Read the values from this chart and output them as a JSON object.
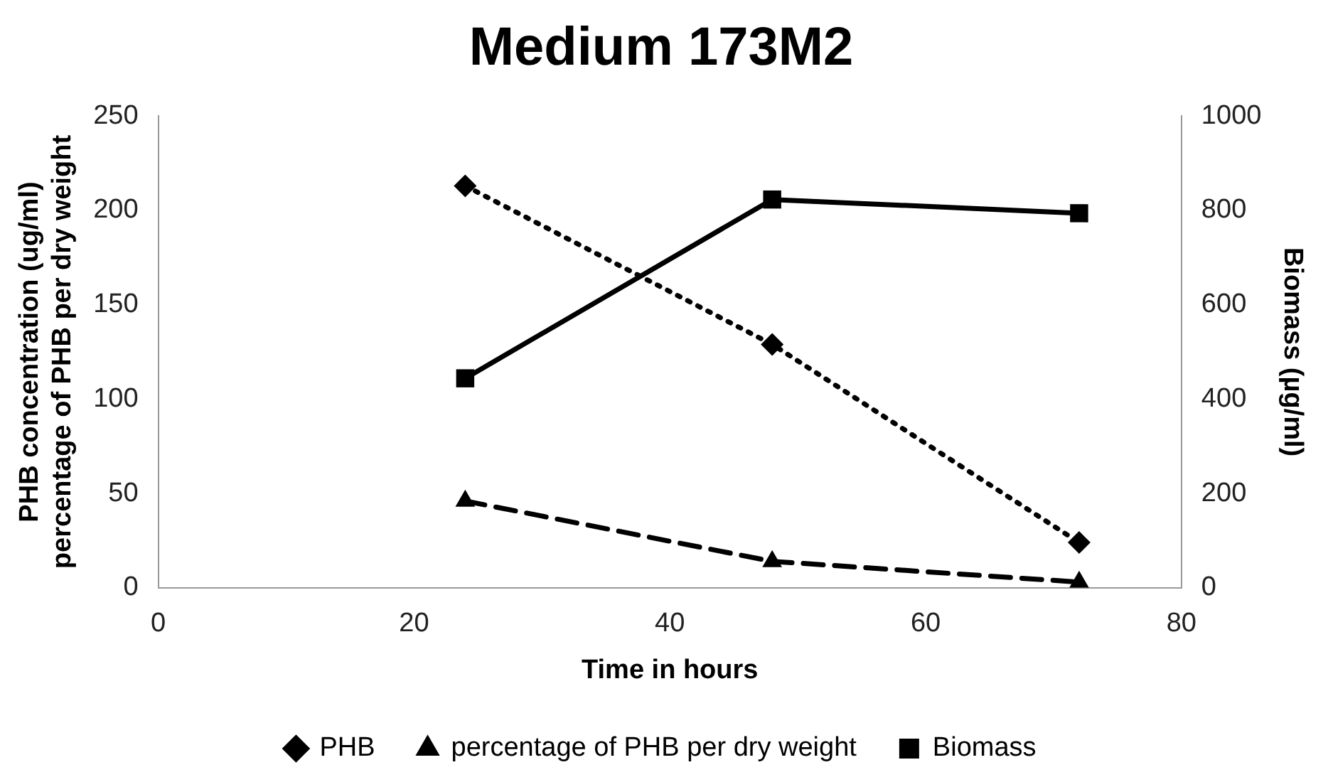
{
  "chart_data": {
    "type": "line",
    "title": "Medium 173M2",
    "xlabel": "Time in hours",
    "ylabel": "PHB concentration (ug/ml)\npercentage of PHB per dry weight",
    "y2label": "Biomass (µg/ml)",
    "x": [
      24,
      48,
      72
    ],
    "series": [
      {
        "name": "PHB",
        "color": "#000000",
        "values": [
          213,
          129,
          24
        ],
        "marker": "diamond",
        "line_style": "dotted"
      },
      {
        "name": "percentage of PHB per dry weight",
        "color": "#000000",
        "values": [
          46,
          14,
          3
        ],
        "marker": "triangle",
        "line_style": "dashed"
      },
      {
        "name": "Biomass",
        "color": "#000000",
        "values": [
          444,
          823,
          794
        ],
        "marker": "square",
        "line_style": "solid",
        "axis": "y2"
      }
    ],
    "xlim": [
      0,
      80
    ],
    "xticks": [
      0,
      20,
      40,
      60,
      80
    ],
    "ylim": [
      0,
      250
    ],
    "yticks": [
      0,
      50,
      100,
      150,
      200,
      250
    ],
    "y2lim": [
      0,
      1000
    ],
    "y2ticks": [
      0,
      200,
      400,
      600,
      800,
      1000
    ],
    "grid": false,
    "legend": "bottom"
  }
}
